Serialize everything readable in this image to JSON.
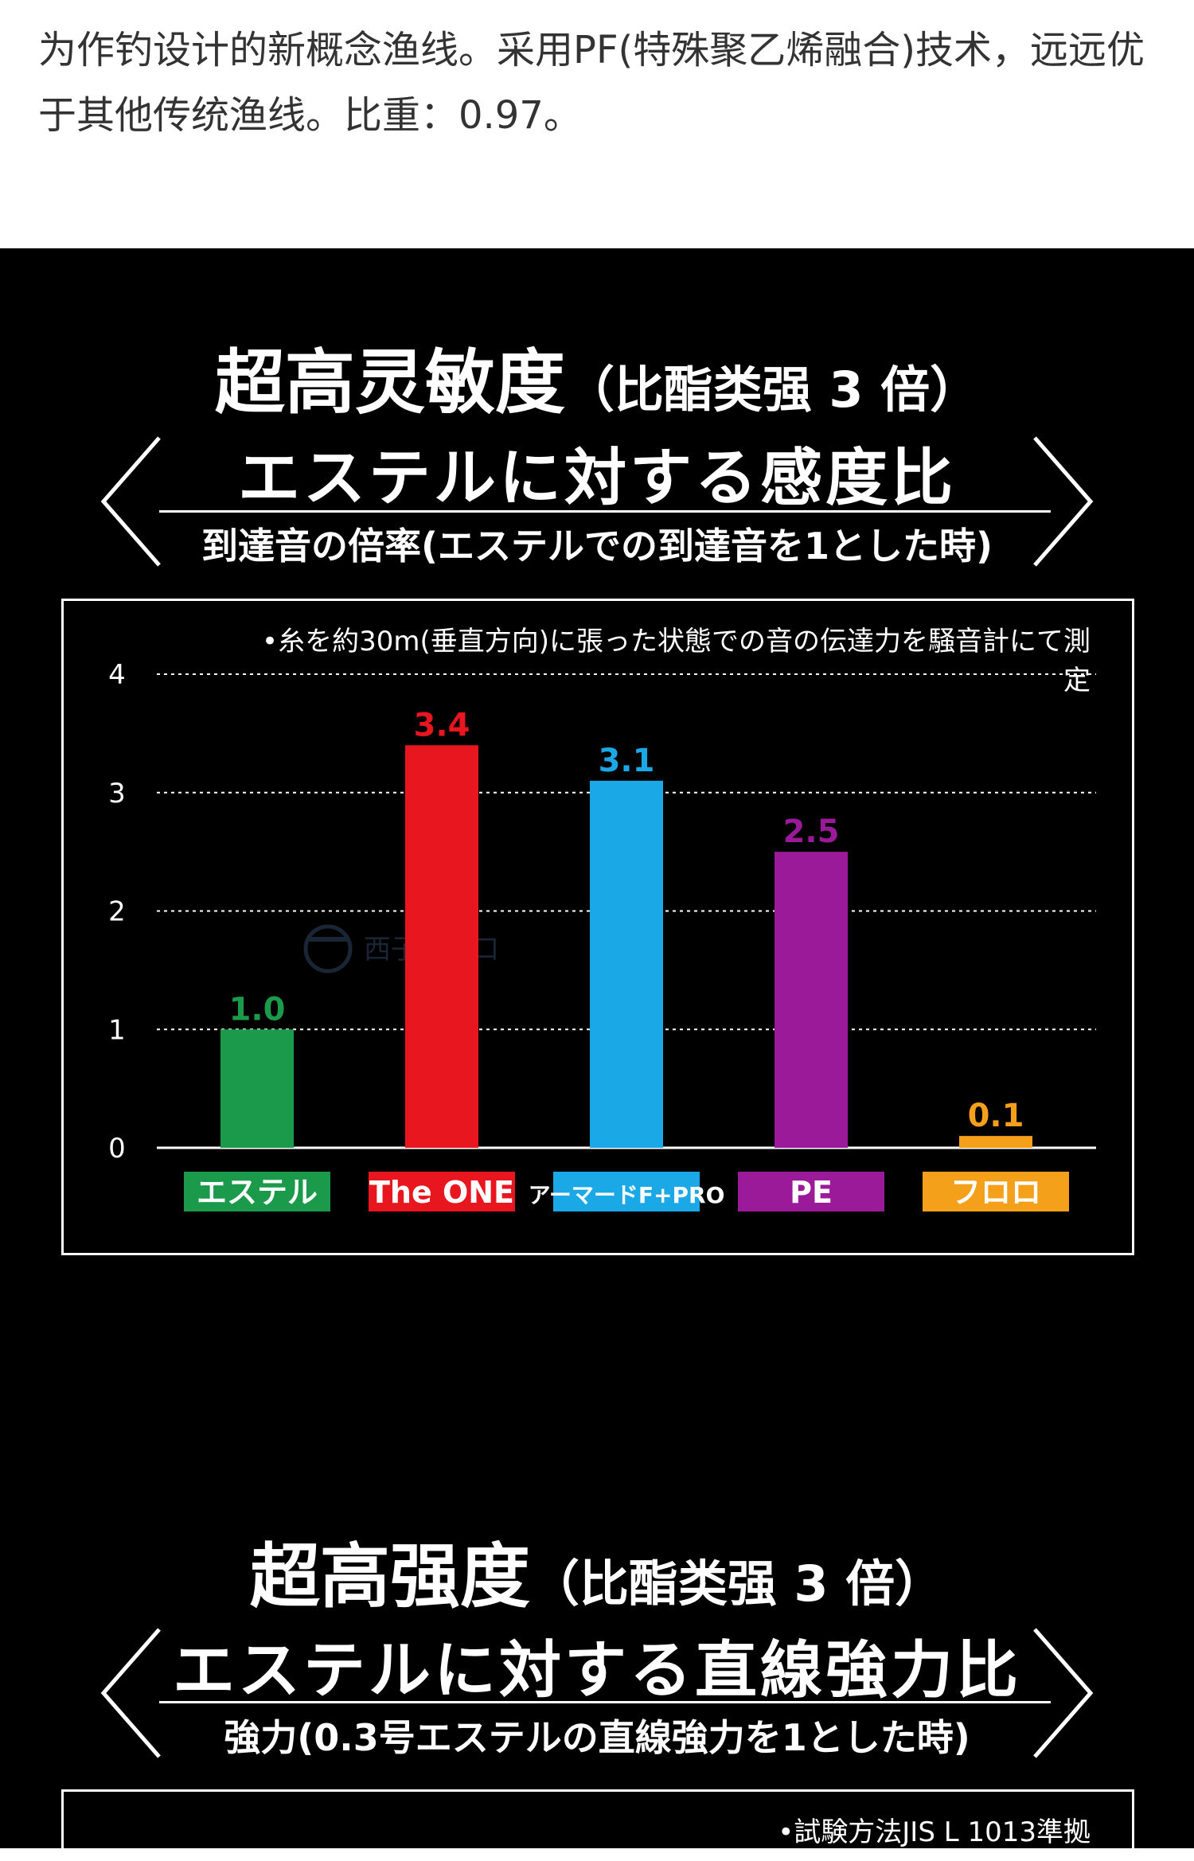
{
  "intro": {
    "text": "为作钓设计的新概念渔线。采用PF(特殊聚乙烯融合)技术，远远优于其他传统渔线。比重：0.97。"
  },
  "section1": {
    "title_main": "超高灵敏度",
    "title_paren": "（比酯类强 3 倍）",
    "subhead": "エステルに対する感度比",
    "subnote": "到達音の倍率(エステルでの到達音を1とした時)",
    "chart_note": "•糸を約30m(垂直方向)に張った状態での音の伝達力を騒音計にて測定",
    "watermark": "西子进出口"
  },
  "section2": {
    "title_main": "超高强度",
    "title_paren": "（比酯类强 3 倍）",
    "subhead": "エステルに対する直線強力比",
    "subnote": "強力(0.3号エステルの直線強力を1とした時)",
    "chart_note": "•試験方法JIS L 1013準拠"
  },
  "chart_data": {
    "type": "bar",
    "categories": [
      "エステル",
      "The ONE",
      "アーマードF+PRO",
      "PE",
      "フロロ"
    ],
    "values": [
      1.0,
      3.4,
      3.1,
      2.5,
      0.1
    ],
    "value_labels": [
      "1.0",
      "3.4",
      "3.1",
      "2.5",
      "0.1"
    ],
    "colors": [
      "#1a9a4a",
      "#e8161e",
      "#1aa8e6",
      "#9a1a9a",
      "#f5a01a"
    ],
    "yticks": [
      "0",
      "1",
      "2",
      "3",
      "4"
    ],
    "ylim": [
      0,
      4
    ],
    "grid": true
  }
}
